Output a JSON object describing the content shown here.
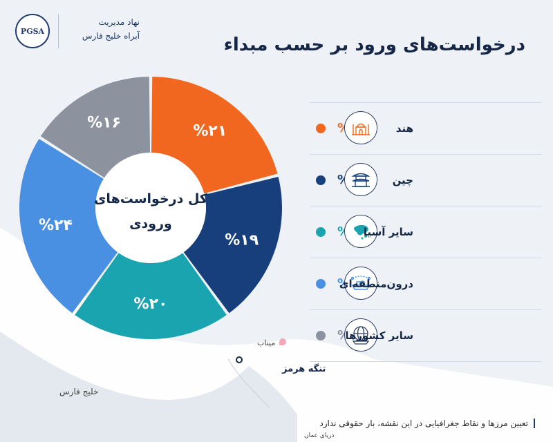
{
  "header": {
    "logo_text": "PGSA",
    "org_line1": "نهاد مدیریت",
    "org_line2": "آبراه خلیج فارس",
    "title": "درخواست‌های ورود بر حسب مبداء"
  },
  "center_label": {
    "line1": "کل درخواست‌های",
    "line2": "ورودی"
  },
  "colors": {
    "india": "#f2671f",
    "china": "#163f7c",
    "other_asia": "#1aa4b0",
    "intra_regional": "#4a90e2",
    "other_countries": "#8c939e"
  },
  "legend": [
    {
      "name": "هند",
      "pct": "%۲۱",
      "icon": "taj-mahal-icon",
      "color": "#f2671f"
    },
    {
      "name": "چین",
      "pct": "%۱۹",
      "icon": "pagoda-icon",
      "color": "#163f7c"
    },
    {
      "name": "سایر آسیا",
      "pct": "%۲۰",
      "icon": "asia-map-icon",
      "color": "#1aa4b0"
    },
    {
      "name": "درون‌منطقه‌ای",
      "pct": "%۲۴",
      "icon": "cargo-ship-route-icon",
      "color": "#4a90e2"
    },
    {
      "name": "سایر کشورها",
      "pct": "%۱۶",
      "icon": "globe-ship-icon",
      "color": "#8c939e"
    }
  ],
  "chart_data": {
    "type": "pie",
    "categories": [
      "هند",
      "چین",
      "سایر آسیا",
      "درون‌منطقه‌ای",
      "سایر کشورها"
    ],
    "values": [
      21,
      19,
      20,
      24,
      16
    ],
    "labels": [
      "%۲۱",
      "%۱۹",
      "%۲۰",
      "%۲۴",
      "%۱۶"
    ],
    "colors": [
      "#f2671f",
      "#163f7c",
      "#1aa4b0",
      "#4a90e2",
      "#8c939e"
    ],
    "title": "درخواست‌های ورود بر حسب مبداء",
    "center_text": "کل درخواست‌های ورودی",
    "donut": true
  },
  "map": {
    "minab": "میناب",
    "strait": "تنگه هرمز",
    "gulf": "خلیج فارس",
    "oman_sea": "دریای عمان"
  },
  "disclaimer": "تعیین مرزها و نقاط جغرافیایی در این نقشه، بار حقوقی ندارد"
}
